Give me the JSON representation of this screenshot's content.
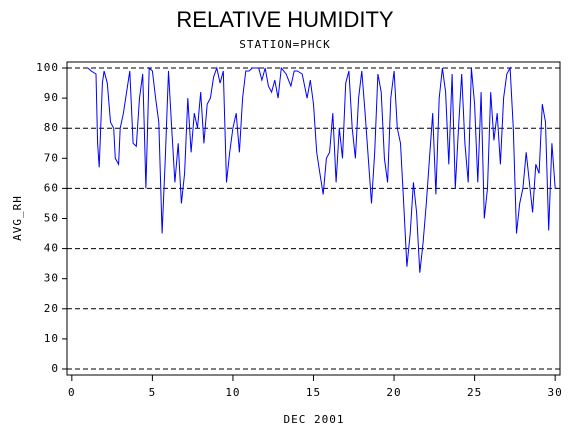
{
  "chart_data": {
    "type": "line",
    "title": "RELATIVE HUMIDITY",
    "subtitle": "STATION=PHCK",
    "x_label": "DEC 2001",
    "y_label": "AVG_RH",
    "xlim": [
      -0.3,
      30.3
    ],
    "ylim": [
      -2,
      102
    ],
    "xticks": [
      0,
      5,
      10,
      15,
      20,
      25,
      30
    ],
    "yticks": [
      0,
      10,
      20,
      30,
      40,
      50,
      60,
      70,
      80,
      90,
      100
    ],
    "grid_values": [
      0,
      20,
      40,
      60,
      80,
      100
    ],
    "x": [
      1.0,
      1.2,
      1.5,
      1.6,
      1.7,
      1.9,
      2.0,
      2.2,
      2.4,
      2.6,
      2.7,
      2.9,
      3.0,
      3.2,
      3.4,
      3.6,
      3.8,
      4.0,
      4.2,
      4.4,
      4.5,
      4.6,
      4.8,
      5.0,
      5.2,
      5.4,
      5.6,
      5.8,
      6.0,
      6.2,
      6.4,
      6.6,
      6.8,
      7.0,
      7.2,
      7.4,
      7.6,
      7.8,
      8.0,
      8.2,
      8.4,
      8.6,
      8.8,
      9.0,
      9.2,
      9.4,
      9.6,
      9.8,
      10.0,
      10.2,
      10.4,
      10.6,
      10.8,
      11.0,
      11.2,
      11.6,
      11.8,
      12.0,
      12.2,
      12.4,
      12.6,
      12.8,
      13.0,
      13.3,
      13.6,
      13.8,
      14.0,
      14.3,
      14.6,
      14.8,
      15.0,
      15.2,
      15.4,
      15.6,
      15.8,
      16.0,
      16.2,
      16.4,
      16.6,
      16.8,
      17.0,
      17.2,
      17.4,
      17.6,
      17.8,
      18.0,
      18.2,
      18.4,
      18.6,
      18.8,
      19.0,
      19.2,
      19.4,
      19.6,
      19.8,
      20.0,
      20.2,
      20.4,
      20.6,
      20.8,
      21.0,
      21.2,
      21.4,
      21.6,
      21.8,
      22.0,
      22.2,
      22.4,
      22.6,
      22.8,
      23.0,
      23.2,
      23.4,
      23.6,
      23.8,
      24.0,
      24.2,
      24.4,
      24.6,
      24.8,
      25.0,
      25.2,
      25.4,
      25.6,
      25.8,
      26.0,
      26.2,
      26.4,
      26.6,
      26.8,
      27.0,
      27.2,
      27.4,
      27.6,
      27.8,
      28.0,
      28.2,
      28.4,
      28.6,
      28.8,
      29.0,
      29.2,
      29.4,
      29.6,
      29.8,
      30.0,
      30.1
    ],
    "series": [
      {
        "color": "#0000ff",
        "values": [
          100,
          99,
          98,
          75,
          67,
          95,
          99,
          95,
          82,
          80,
          70,
          68,
          80,
          85,
          92,
          99,
          75,
          74,
          90,
          98,
          80,
          60,
          100,
          99,
          90,
          82,
          45,
          70,
          99,
          80,
          62,
          75,
          55,
          65,
          90,
          72,
          85,
          80,
          92,
          75,
          88,
          90,
          97,
          100,
          95,
          99,
          62,
          72,
          80,
          85,
          72,
          90,
          99,
          99,
          100,
          100,
          96,
          100,
          94,
          92,
          96,
          90,
          100,
          98,
          94,
          99,
          99,
          98,
          90,
          96,
          88,
          72,
          65,
          58,
          70,
          72,
          85,
          62,
          80,
          70,
          95,
          99,
          80,
          70,
          90,
          99,
          85,
          70,
          55,
          72,
          98,
          92,
          70,
          62,
          90,
          99,
          80,
          75,
          55,
          34,
          45,
          62,
          52,
          32,
          42,
          55,
          70,
          85,
          58,
          90,
          100,
          92,
          68,
          98,
          60,
          80,
          98,
          75,
          62,
          100,
          88,
          62,
          92,
          50,
          60,
          92,
          76,
          85,
          68,
          90,
          98,
          100,
          80,
          45,
          55,
          60,
          72,
          62,
          52,
          68,
          65,
          88,
          82,
          46,
          75,
          60,
          60
        ]
      }
    ]
  }
}
